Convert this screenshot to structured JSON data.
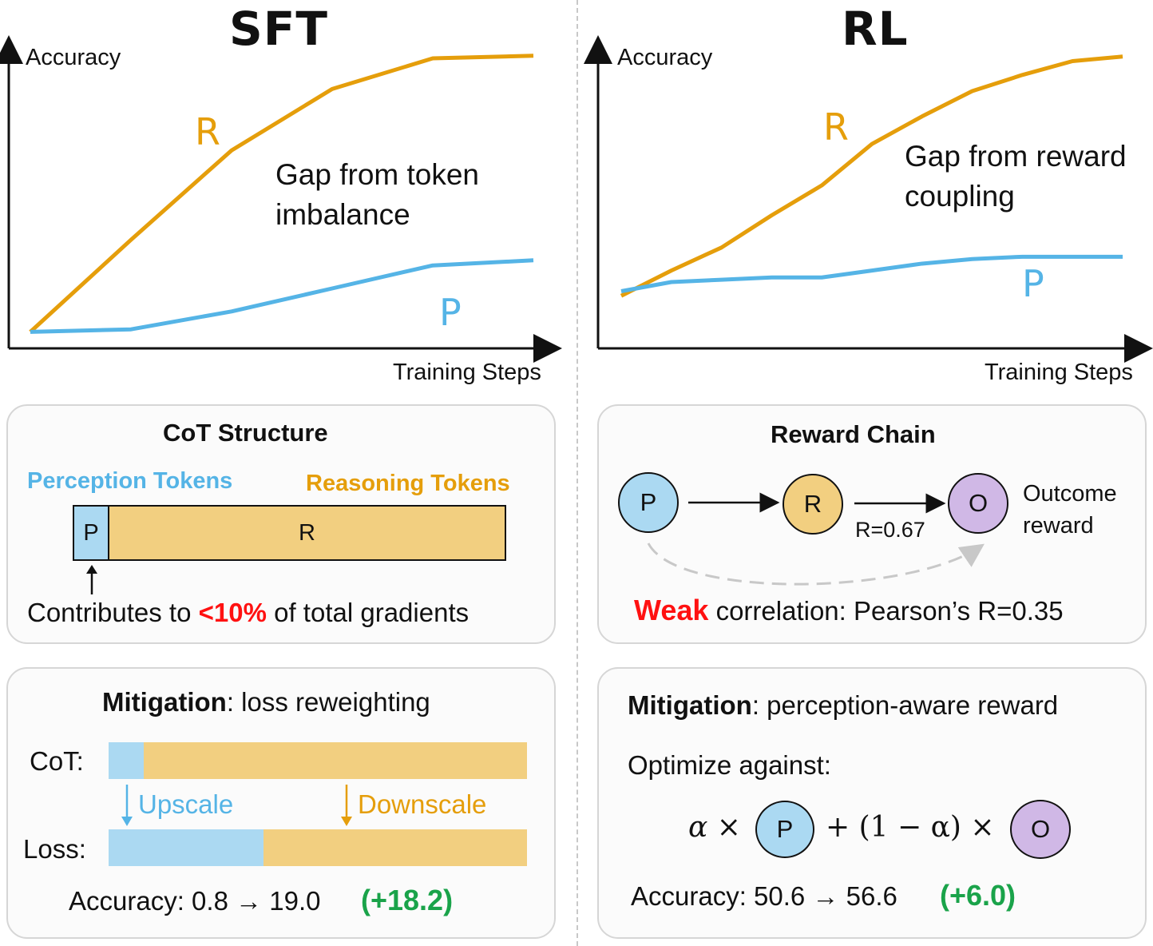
{
  "colors": {
    "reasoning": "#e59e0b",
    "perception": "#55b4e6",
    "perception_fill": "#abd9f2",
    "reasoning_fill": "#f2cf80",
    "outcome_fill": "#d0b8e6",
    "highlight_red": "#ff1111",
    "gain_green": "#1aa34a"
  },
  "sft": {
    "title": "SFT",
    "y_label": "Accuracy",
    "x_label": "Training Steps",
    "annotation_line1": "Gap from token",
    "annotation_line2": "imbalance",
    "curve_r_label": "R",
    "curve_p_label": "P"
  },
  "rl": {
    "title": "RL",
    "y_label": "Accuracy",
    "x_label": "Training Steps",
    "annotation_line1": "Gap from reward",
    "annotation_line2": "coupling",
    "curve_r_label": "R",
    "curve_p_label": "P"
  },
  "cot_panel": {
    "title": "CoT Structure",
    "perception_label": "Perception Tokens",
    "reasoning_label": "Reasoning Tokens",
    "bar_p": "P",
    "bar_r": "R",
    "caption_pre": "Contributes to ",
    "caption_highlight": "<10%",
    "caption_post": " of total gradients"
  },
  "reward_panel": {
    "title": "Reward Chain",
    "node_p": "P",
    "node_r": "R",
    "node_o": "O",
    "edge_label": "R=0.67",
    "outcome_line1": "Outcome",
    "outcome_line2": "reward",
    "caption_highlight": "Weak",
    "caption_post": " correlation: Pearson’s R=0.35"
  },
  "sft_mitigation": {
    "title_bold": "Mitigation",
    "title_rest": ": loss reweighting",
    "row1_label": "CoT:",
    "row2_label": "Loss:",
    "upscale": "Upscale",
    "downscale": "Downscale",
    "accuracy_text": "Accuracy: 0.8 → 19.0",
    "gain": "(+18.2)"
  },
  "rl_mitigation": {
    "title_bold": "Mitigation",
    "title_rest": ": perception-aware reward",
    "optimize_label": "Optimize against:",
    "formula_alpha": "α ×",
    "formula_node_p": "P",
    "formula_mid": "+ (1 − α) ×",
    "formula_node_o": "O",
    "accuracy_text": "Accuracy: 50.6 → 56.6",
    "gain": "(+6.0)"
  },
  "chart_data": [
    {
      "type": "line",
      "title": "SFT",
      "xlabel": "Training Steps",
      "ylabel": "Accuracy",
      "x": [
        0,
        1,
        2,
        3,
        4,
        5
      ],
      "series": [
        {
          "name": "R",
          "values": [
            0.03,
            0.39,
            0.74,
            0.98,
            1.1,
            1.11
          ]
        },
        {
          "name": "P",
          "values": [
            0.03,
            0.04,
            0.11,
            0.2,
            0.29,
            0.31
          ]
        }
      ],
      "ylim": [
        0,
        1.2
      ]
    },
    {
      "type": "line",
      "title": "RL",
      "xlabel": "Training Steps",
      "ylabel": "Accuracy",
      "x": [
        0,
        0.5,
        1,
        1.5,
        2,
        2.5,
        3,
        3.5,
        4,
        4.5,
        5
      ],
      "series": [
        {
          "name": "R",
          "values": [
            0.19,
            0.3,
            0.4,
            0.54,
            0.67,
            0.85,
            0.97,
            1.08,
            1.15,
            1.21,
            1.23
          ]
        },
        {
          "name": "P",
          "values": [
            0.21,
            0.25,
            0.26,
            0.27,
            0.27,
            0.3,
            0.33,
            0.35,
            0.36,
            0.36,
            0.36
          ]
        }
      ],
      "ylim": [
        0,
        1.35
      ]
    }
  ]
}
